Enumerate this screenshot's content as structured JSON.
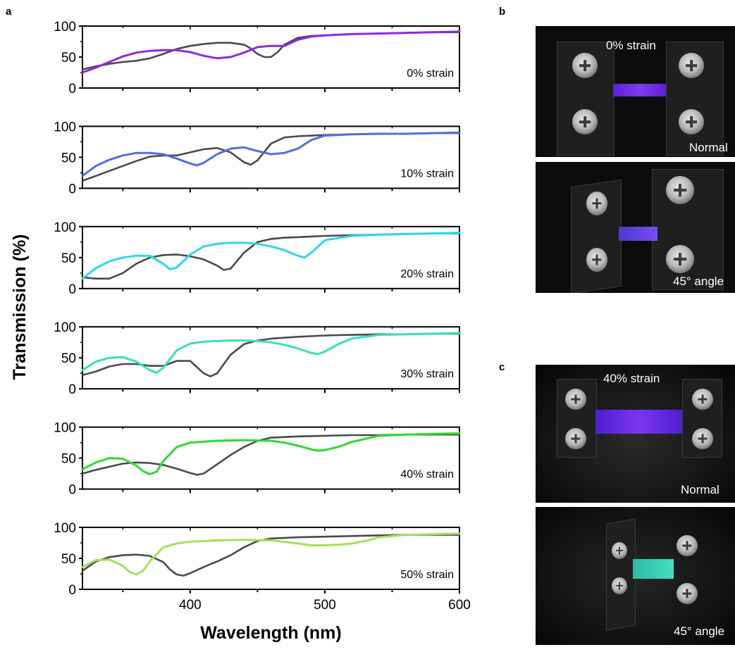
{
  "panel_labels": {
    "a": "a",
    "b": "b",
    "c": "c"
  },
  "colors": {
    "reference": "#4a4a4a",
    "s0": "#8a2be2",
    "s10": "#4f6fe0",
    "s20": "#2fd6e6",
    "s30": "#38e0b8",
    "s40": "#33d633",
    "s50": "#a6e05a"
  },
  "photos": {
    "b_top_strain": "0% strain",
    "b_top_view": "Normal",
    "b_bottom_view": "45° angle",
    "c_top_strain": "40% strain",
    "c_top_view": "Normal",
    "c_bottom_view": "45° angle"
  },
  "chart_data": {
    "type": "line",
    "ylabel": "Transmission (%)",
    "xlabel": "Wavelength (nm)",
    "xlim": [
      320,
      600
    ],
    "ylim": [
      0,
      100
    ],
    "xticks": [
      400,
      500,
      600
    ],
    "yticks": [
      0,
      50,
      100
    ],
    "panels": [
      {
        "label": "0% strain",
        "color_key": "s0",
        "series": [
          {
            "role": "reference",
            "x": [
              320,
              330,
              340,
              350,
              360,
              370,
              380,
              390,
              400,
              410,
              420,
              430,
              440,
              445,
              450,
              455,
              460,
              465,
              470,
              480,
              490,
              500,
              520,
              540,
              560,
              580,
              600
            ],
            "y": [
              30,
              35,
              39,
              42,
              44,
              48,
              55,
              63,
              68,
              71,
              73,
              73,
              70,
              64,
              55,
              50,
              50,
              58,
              70,
              81,
              84,
              85,
              87,
              88,
              89,
              90,
              90
            ]
          },
          {
            "role": "colored",
            "x": [
              320,
              330,
              340,
              350,
              360,
              370,
              380,
              390,
              400,
              410,
              420,
              430,
              440,
              450,
              460,
              470,
              480,
              490,
              500,
              520,
              540,
              560,
              580,
              600
            ],
            "y": [
              25,
              33,
              42,
              51,
              57,
              60,
              61,
              61,
              58,
              52,
              48,
              50,
              57,
              66,
              68,
              68,
              78,
              83,
              85,
              87,
              88,
              89,
              90,
              91
            ]
          }
        ]
      },
      {
        "label": "10% strain",
        "color_key": "s10",
        "series": [
          {
            "role": "reference",
            "x": [
              320,
              330,
              340,
              350,
              360,
              370,
              380,
              390,
              400,
              410,
              420,
              430,
              440,
              445,
              450,
              460,
              470,
              480,
              490,
              500,
              520,
              540,
              560,
              580,
              600
            ],
            "y": [
              12,
              20,
              28,
              36,
              44,
              51,
              53,
              53,
              58,
              63,
              65,
              58,
              42,
              38,
              45,
              72,
              82,
              84,
              85,
              86,
              87,
              88,
              88,
              89,
              89
            ]
          },
          {
            "role": "colored",
            "x": [
              320,
              330,
              340,
              350,
              360,
              370,
              380,
              390,
              400,
              405,
              410,
              420,
              430,
              440,
              450,
              460,
              470,
              480,
              490,
              500,
              520,
              540,
              560,
              580,
              600
            ],
            "y": [
              20,
              36,
              46,
              53,
              57,
              57,
              55,
              48,
              40,
              37,
              41,
              55,
              64,
              66,
              60,
              55,
              57,
              64,
              78,
              85,
              87,
              88,
              88,
              89,
              90
            ]
          }
        ]
      },
      {
        "label": "20% strain",
        "color_key": "s20",
        "series": [
          {
            "role": "reference",
            "x": [
              320,
              330,
              340,
              350,
              360,
              370,
              380,
              390,
              400,
              410,
              420,
              425,
              430,
              440,
              450,
              460,
              470,
              480,
              490,
              500,
              520,
              540,
              560,
              580,
              600
            ],
            "y": [
              18,
              16,
              16,
              25,
              40,
              50,
              54,
              55,
              52,
              47,
              37,
              30,
              32,
              58,
              75,
              80,
              82,
              83,
              84,
              85,
              86,
              87,
              88,
              89,
              89
            ]
          },
          {
            "role": "colored",
            "x": [
              320,
              330,
              340,
              350,
              360,
              370,
              380,
              385,
              390,
              400,
              410,
              420,
              430,
              440,
              450,
              460,
              470,
              480,
              485,
              490,
              500,
              520,
              540,
              560,
              580,
              600
            ],
            "y": [
              16,
              33,
              44,
              50,
              53,
              53,
              40,
              31,
              34,
              55,
              68,
              72,
              74,
              74,
              72,
              68,
              62,
              53,
              50,
              58,
              78,
              85,
              87,
              88,
              89,
              90
            ]
          }
        ]
      },
      {
        "label": "30% strain",
        "color_key": "s30",
        "series": [
          {
            "role": "reference",
            "x": [
              320,
              330,
              340,
              350,
              360,
              370,
              380,
              390,
              400,
              410,
              415,
              420,
              430,
              440,
              450,
              460,
              480,
              500,
              520,
              540,
              560,
              580,
              600
            ],
            "y": [
              22,
              28,
              36,
              40,
              40,
              37,
              37,
              45,
              45,
              25,
              20,
              25,
              55,
              72,
              78,
              81,
              84,
              86,
              87,
              88,
              88,
              89,
              89
            ]
          },
          {
            "role": "colored",
            "x": [
              320,
              330,
              340,
              350,
              360,
              370,
              375,
              380,
              390,
              400,
              410,
              420,
              430,
              440,
              450,
              460,
              470,
              480,
              490,
              495,
              500,
              510,
              520,
              540,
              560,
              580,
              600
            ],
            "y": [
              30,
              44,
              50,
              51,
              44,
              30,
              26,
              34,
              62,
              73,
              76,
              77,
              78,
              78,
              77,
              75,
              71,
              65,
              58,
              56,
              60,
              72,
              81,
              87,
              88,
              89,
              90
            ]
          }
        ]
      },
      {
        "label": "40% strain",
        "color_key": "s40",
        "series": [
          {
            "role": "reference",
            "x": [
              320,
              330,
              340,
              350,
              360,
              370,
              380,
              390,
              400,
              405,
              410,
              420,
              430,
              440,
              450,
              460,
              480,
              500,
              520,
              540,
              560,
              580,
              600
            ],
            "y": [
              25,
              31,
              36,
              41,
              43,
              42,
              39,
              33,
              26,
              23,
              25,
              40,
              55,
              68,
              78,
              83,
              85,
              86,
              87,
              87,
              88,
              88,
              88
            ]
          },
          {
            "role": "colored",
            "x": [
              320,
              330,
              340,
              350,
              360,
              365,
              370,
              375,
              380,
              390,
              400,
              420,
              440,
              460,
              470,
              480,
              490,
              495,
              500,
              510,
              520,
              540,
              560,
              580,
              600
            ],
            "y": [
              32,
              43,
              50,
              49,
              38,
              29,
              24,
              28,
              45,
              68,
              75,
              78,
              79,
              78,
              75,
              70,
              64,
              62,
              63,
              68,
              76,
              86,
              88,
              89,
              90
            ]
          }
        ]
      },
      {
        "label": "50% strain",
        "color_key": "s50",
        "series": [
          {
            "role": "reference",
            "x": [
              320,
              330,
              340,
              350,
              360,
              370,
              380,
              385,
              390,
              395,
              400,
              410,
              420,
              430,
              440,
              450,
              460,
              480,
              500,
              520,
              540,
              560,
              580,
              600
            ],
            "y": [
              30,
              45,
              52,
              55,
              56,
              54,
              44,
              32,
              24,
              22,
              26,
              36,
              45,
              55,
              68,
              78,
              82,
              84,
              85,
              86,
              87,
              88,
              88,
              88
            ]
          },
          {
            "role": "colored",
            "x": [
              320,
              330,
              340,
              350,
              355,
              360,
              365,
              370,
              380,
              390,
              400,
              420,
              440,
              460,
              480,
              490,
              500,
              510,
              520,
              530,
              540,
              560,
              580,
              600
            ],
            "y": [
              36,
              47,
              48,
              38,
              28,
              24,
              30,
              45,
              68,
              74,
              77,
              79,
              80,
              79,
              74,
              71,
              71,
              72,
              74,
              78,
              84,
              88,
              89,
              90
            ]
          }
        ]
      }
    ]
  }
}
